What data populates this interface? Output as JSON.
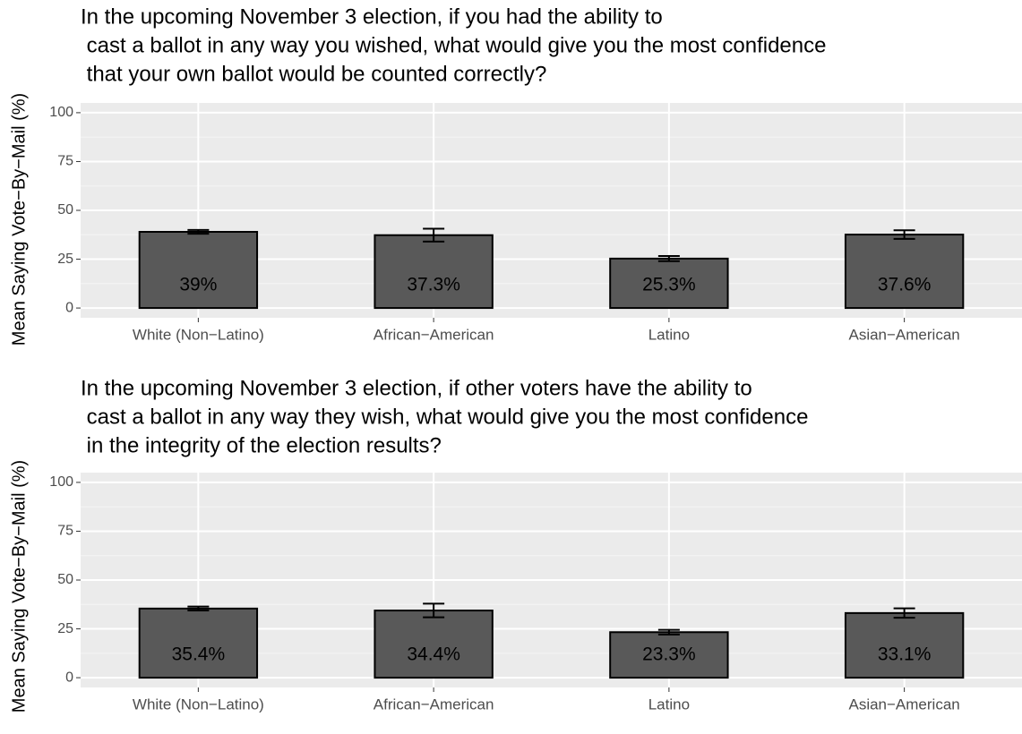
{
  "chart_data": [
    {
      "type": "bar",
      "title": [
        "In the upcoming November 3 election, if you had the ability to",
        " cast a ballot in any way you wished, what would give you the most confidence",
        " that your own ballot would be counted correctly?"
      ],
      "ylabel": "Mean Saying Vote−By−Mail (%)",
      "categories": [
        "White (Non−Latino)",
        "African−American",
        "Latino",
        "Asian−American"
      ],
      "values": [
        39,
        37.3,
        25.3,
        37.6
      ],
      "value_labels": [
        "39%",
        "37.3%",
        "25.3%",
        "37.6%"
      ],
      "errors": [
        1,
        3.3,
        1.3,
        2.2
      ],
      "color": "#595959",
      "ylim": [
        -5,
        105
      ],
      "yticks": [
        0,
        25,
        50,
        75,
        100
      ],
      "grid": true
    },
    {
      "type": "bar",
      "title": [
        "In the upcoming November 3 election, if other voters have the ability to",
        " cast a ballot in any way they wish, what would give you the most confidence",
        " in the integrity of the election results?"
      ],
      "ylabel": "Mean Saying Vote−By−Mail (%)",
      "categories": [
        "White (Non−Latino)",
        "African−American",
        "Latino",
        "Asian−American"
      ],
      "values": [
        35.4,
        34.4,
        23.3,
        33.1
      ],
      "value_labels": [
        "35.4%",
        "34.4%",
        "23.3%",
        "33.1%"
      ],
      "errors": [
        1,
        3.5,
        1.2,
        2.4
      ],
      "color": "#595959",
      "ylim": [
        -5,
        105
      ],
      "yticks": [
        0,
        25,
        50,
        75,
        100
      ],
      "grid": true
    }
  ]
}
